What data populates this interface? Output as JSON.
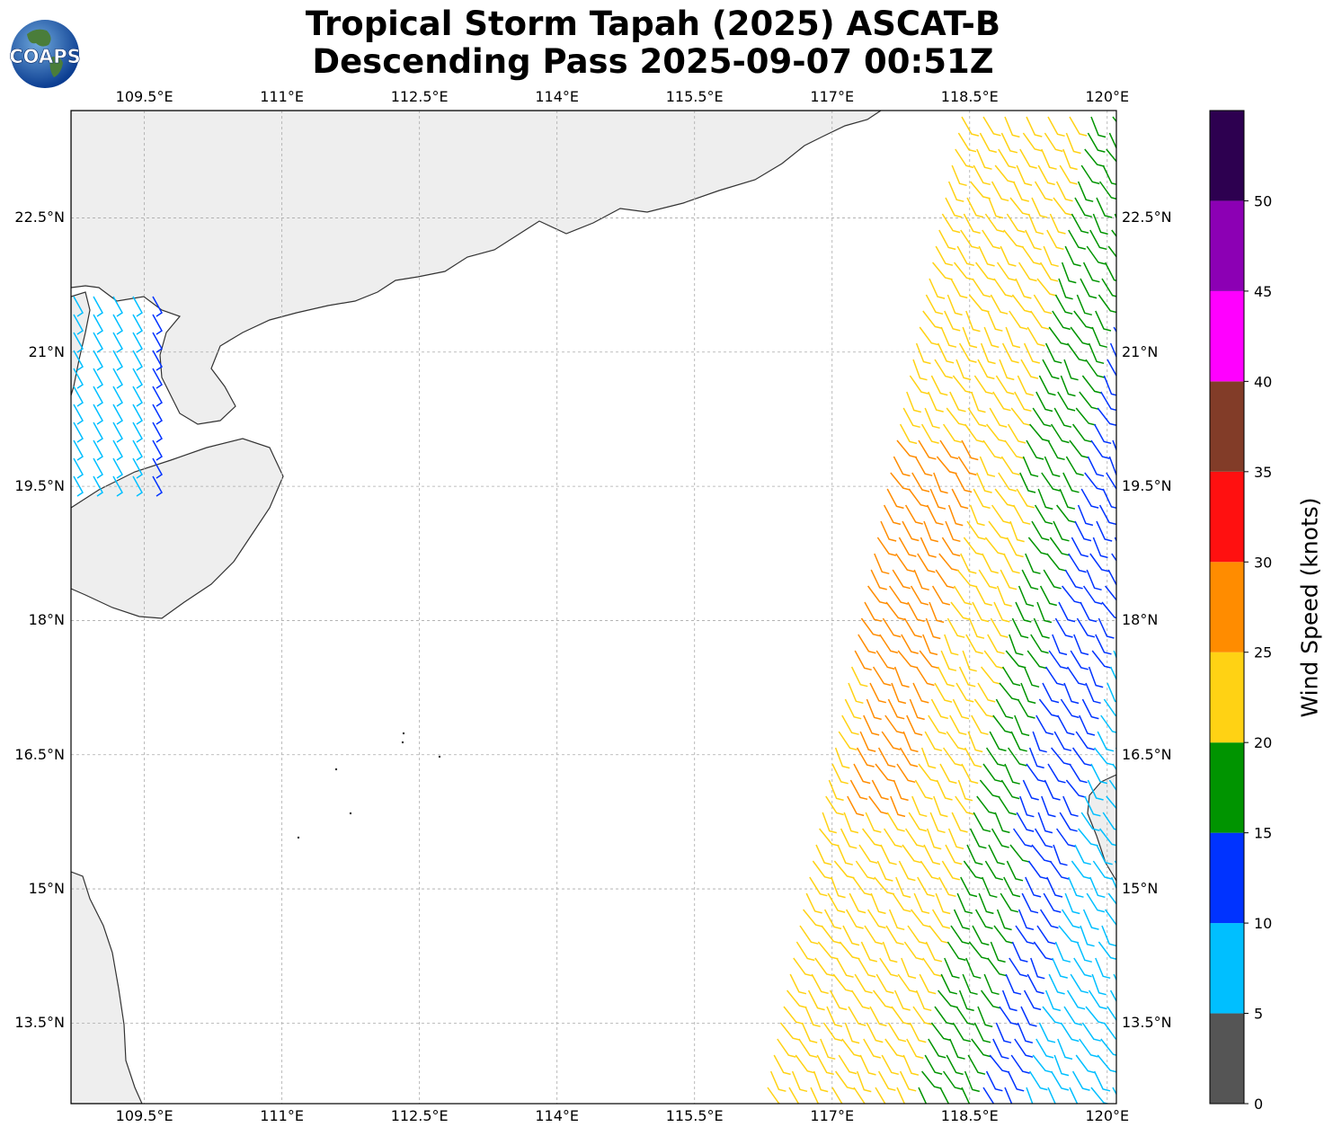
{
  "title": {
    "line1": "Tropical Storm Tapah (2025) ASCAT-B",
    "line2": "Descending Pass 2025-09-07 00:51Z"
  },
  "logo": {
    "text": "COAPS",
    "icon": "globe-logo-icon"
  },
  "map": {
    "lon_range": [
      108.7,
      120.1
    ],
    "lat_range": [
      12.6,
      23.7
    ],
    "lon_ticks": [
      "109.5°E",
      "111°E",
      "112.5°E",
      "114°E",
      "115.5°E",
      "117°E",
      "118.5°E",
      "120°E"
    ],
    "lon_values": [
      109.5,
      111,
      112.5,
      114,
      115.5,
      117,
      118.5,
      120
    ],
    "lat_ticks": [
      "22.5°N",
      "21°N",
      "19.5°N",
      "18°N",
      "16.5°N",
      "15°N",
      "13.5°N"
    ],
    "lat_values": [
      22.5,
      21,
      19.5,
      18,
      16.5,
      15,
      13.5
    ],
    "gridlines": true,
    "land_color": "#ececec",
    "coast_color": "#333333"
  },
  "colorbar": {
    "title": "Wind Speed (knots)",
    "labels": [
      "0",
      "5",
      "10",
      "15",
      "20",
      "25",
      "30",
      "35",
      "40",
      "45",
      "50"
    ],
    "colors": [
      "#555555",
      "#00bfff",
      "#0033ff",
      "#009400",
      "#ffd214",
      "#ff8c00",
      "#ff1010",
      "#823c28",
      "#ff00ff",
      "#8c00b4",
      "#2d0050"
    ]
  }
}
